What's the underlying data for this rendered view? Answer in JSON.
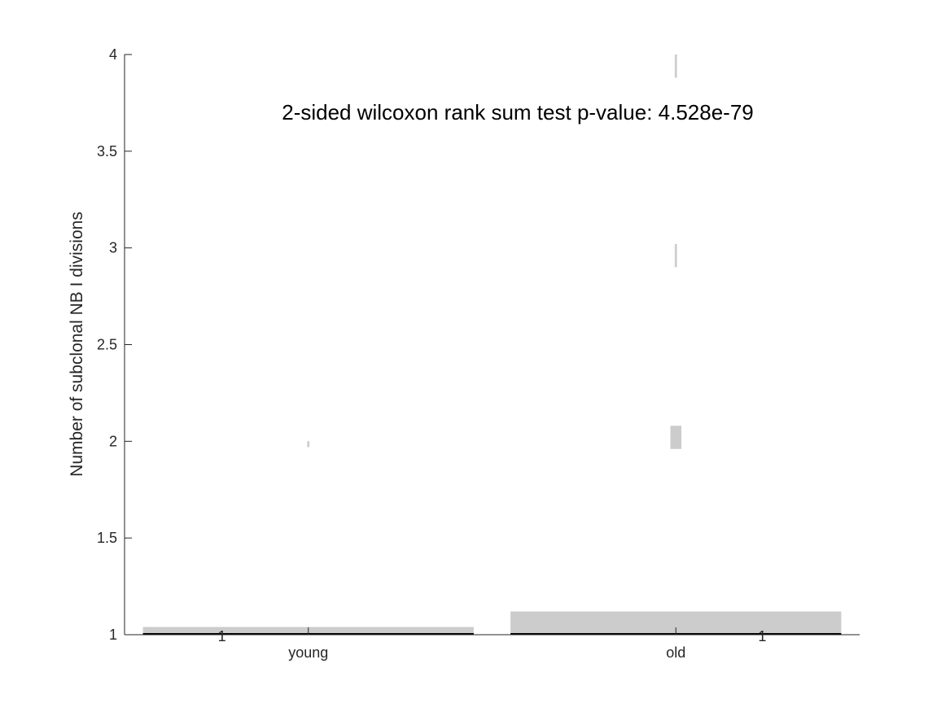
{
  "chart_data": {
    "type": "violin",
    "title": "",
    "annotation": "2-sided wilcoxon rank sum test p-value:  4.528e-79",
    "xlabel": "",
    "ylabel": "Number of subclonal NB I divisions",
    "categories": [
      "young",
      "old"
    ],
    "ylim": [
      1,
      4
    ],
    "yticks": [
      1,
      1.5,
      2,
      2.5,
      3,
      3.5,
      4
    ],
    "ytick_labels": [
      "1",
      "1.5",
      "2",
      "2.5",
      "3",
      "3.5",
      "4"
    ],
    "grid": false,
    "fill_color": "#cccccc",
    "median_color": "#000000",
    "groups": [
      {
        "name": "young",
        "median": 1,
        "density": [
          {
            "y": 1.0,
            "w": 0.9
          },
          {
            "y": 1.04,
            "w": 0.9
          },
          {
            "y": 1.04,
            "w": 0.0
          },
          {
            "y": 1.97,
            "w": 0.0
          },
          {
            "y": 1.97,
            "w": 0.006
          },
          {
            "y": 2.0,
            "w": 0.006
          },
          {
            "y": 2.0,
            "w": 0.0
          }
        ]
      },
      {
        "name": "old",
        "median": 1,
        "density": [
          {
            "y": 1.0,
            "w": 0.9
          },
          {
            "y": 1.12,
            "w": 0.9
          },
          {
            "y": 1.12,
            "w": 0.0
          },
          {
            "y": 1.96,
            "w": 0.0
          },
          {
            "y": 1.96,
            "w": 0.03
          },
          {
            "y": 2.08,
            "w": 0.03
          },
          {
            "y": 2.08,
            "w": 0.0
          },
          {
            "y": 2.9,
            "w": 0.0
          },
          {
            "y": 2.9,
            "w": 0.006
          },
          {
            "y": 3.02,
            "w": 0.006
          },
          {
            "y": 3.02,
            "w": 0.0
          },
          {
            "y": 3.88,
            "w": 0.0
          },
          {
            "y": 3.88,
            "w": 0.006
          },
          {
            "y": 4.0,
            "w": 0.006
          },
          {
            "y": 4.0,
            "w": 0.0
          }
        ]
      }
    ],
    "side_labels": [
      "1",
      "1"
    ]
  }
}
